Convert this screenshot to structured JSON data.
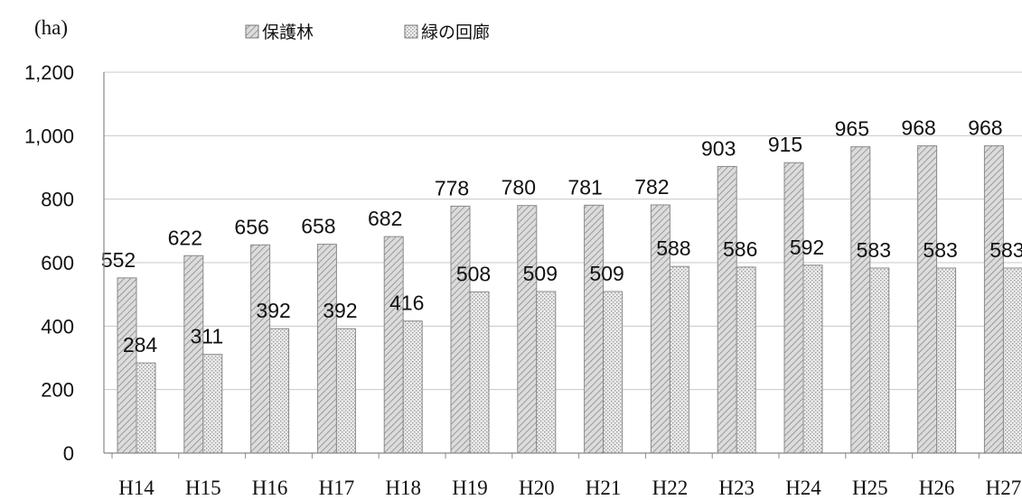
{
  "chart_data": {
    "type": "bar",
    "unit_label": "(ha)",
    "categories": [
      "H14",
      "H15",
      "H16",
      "H17",
      "H18",
      "H19",
      "H20",
      "H21",
      "H22",
      "H23",
      "H24",
      "H25",
      "H26",
      "H27"
    ],
    "series": [
      {
        "name": "保護林",
        "values": [
          552,
          622,
          656,
          658,
          682,
          778,
          780,
          781,
          782,
          903,
          915,
          965,
          968,
          968
        ],
        "pattern": "diagonal-hatch"
      },
      {
        "name": "緑の回廊",
        "values": [
          284,
          311,
          392,
          392,
          416,
          508,
          509,
          509,
          588,
          586,
          592,
          583,
          583,
          583
        ],
        "pattern": "dotted"
      }
    ],
    "ylim": [
      0,
      1200
    ],
    "yticks": [
      "0",
      "200",
      "400",
      "600",
      "800",
      "1,000",
      "1,200"
    ],
    "ytick_values": [
      0,
      200,
      400,
      600,
      800,
      1000,
      1200
    ],
    "grid": true,
    "legend_position": "top",
    "colors": {
      "bar_fill": "#dcdcdc",
      "hatch": "#8a8a8a",
      "gridline": "#c8c8c8",
      "axis": "#888888"
    }
  }
}
